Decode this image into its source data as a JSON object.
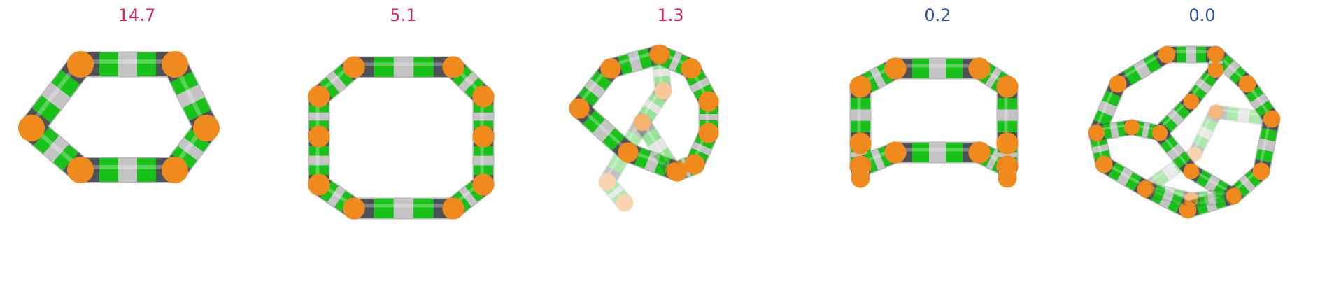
{
  "panels": [
    {
      "value": "14.7",
      "value_color": "#d6245a",
      "shape": "saddle-ring"
    },
    {
      "value": "5.1",
      "value_color": "#d6245a",
      "shape": "square-ring"
    },
    {
      "value": "1.3",
      "value_color": "#d6245a",
      "shape": "twisted-ring"
    },
    {
      "value": "0.2",
      "value_color": "#2f56a0",
      "shape": "box-ring"
    },
    {
      "value": "0.0",
      "value_color": "#2f56a0",
      "shape": "cage"
    }
  ],
  "colors": {
    "green": "#18c218",
    "white": "#c4c4c4",
    "dark": "#4d5259",
    "orange": "#f08a1c"
  }
}
